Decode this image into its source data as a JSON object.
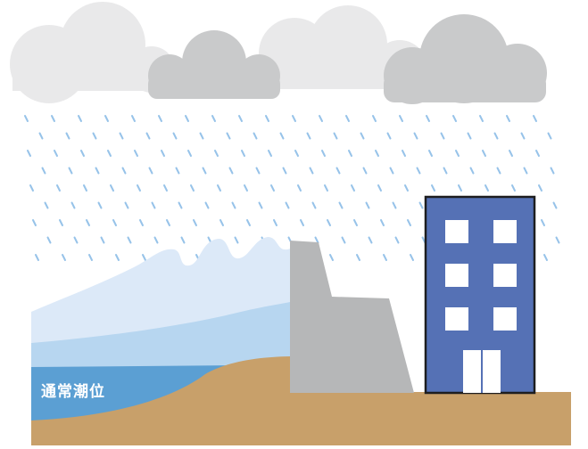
{
  "labels": {
    "normal_tide_level": "通常潮位"
  },
  "colors": {
    "cloud_light": "#e9e9ea",
    "cloud_dark": "#c9cacb",
    "rain": "#97c3e9",
    "wave_back": "#dce9f8",
    "wave_mid": "#b7d6f0",
    "sea": "#5b9fd3",
    "ground": "#c8a06a",
    "seawall": "#b6b7b8",
    "building": "#5571b5",
    "building_outline": "#1d1d1f",
    "window": "#ffffff"
  }
}
